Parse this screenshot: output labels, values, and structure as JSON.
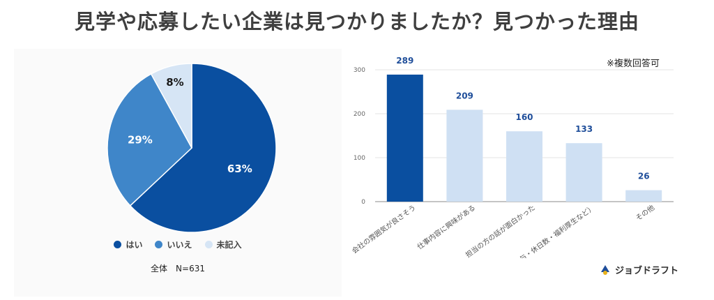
{
  "title": "見学や応募したい企業は見つかりましたか？見つかった理由",
  "note": "※複数回答可",
  "brand": {
    "name": "ジョブドラフト"
  },
  "colors": {
    "dark": "#0a4fa0",
    "mid": "#3f86c9",
    "light": "#cfe0f3",
    "pie_light": "#d6e5f5"
  },
  "pie": {
    "total_label": "全体　N=631",
    "legend": [
      {
        "label": "はい"
      },
      {
        "label": "いいえ"
      },
      {
        "label": "未記入"
      }
    ]
  },
  "chart_data": [
    {
      "type": "pie",
      "labels": [
        "はい",
        "いいえ",
        "未記入"
      ],
      "values": [
        63,
        29,
        8
      ],
      "value_labels": [
        "63%",
        "29%",
        "8%"
      ],
      "legend_position": "bottom"
    },
    {
      "type": "bar",
      "categories": [
        "会社の雰囲気が良さそう",
        "仕事内容に興味がある",
        "担当の方の話が面白かった",
        "条件面（給与・休日数・福利厚生など）",
        "その他"
      ],
      "values": [
        289,
        209,
        160,
        133,
        26
      ],
      "ylim": [
        0,
        300
      ],
      "yticks": [
        0,
        100,
        200,
        300
      ],
      "grid": true
    }
  ]
}
